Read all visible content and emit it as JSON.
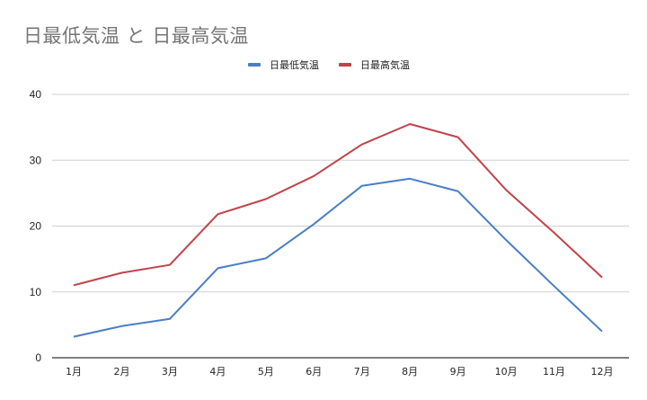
{
  "chart_data": {
    "type": "line",
    "title": "日最低気温 と 日最高気温",
    "xlabel": "",
    "ylabel": "",
    "categories": [
      "1月",
      "2月",
      "3月",
      "4月",
      "5月",
      "6月",
      "7月",
      "8月",
      "9月",
      "10月",
      "11月",
      "12月"
    ],
    "series": [
      {
        "name": "日最低気温",
        "color": "#4a7ec3",
        "values": [
          3.2,
          4.8,
          5.9,
          13.6,
          15.1,
          20.3,
          26.1,
          27.2,
          25.3,
          17.9,
          10.9,
          4.0
        ]
      },
      {
        "name": "日最高気温",
        "color": "#c0434a",
        "values": [
          11.0,
          12.9,
          14.1,
          21.8,
          24.1,
          27.6,
          32.4,
          35.5,
          33.5,
          25.5,
          19.0,
          12.2
        ]
      }
    ],
    "ylim": [
      0,
      40
    ],
    "yticks": [
      0,
      10,
      20,
      30,
      40
    ],
    "grid": true,
    "legend_position": "top"
  },
  "legend": {
    "items": [
      {
        "label": "日最低気温",
        "color": "#4a7ec3"
      },
      {
        "label": "日最高気温",
        "color": "#c0434a"
      }
    ]
  }
}
